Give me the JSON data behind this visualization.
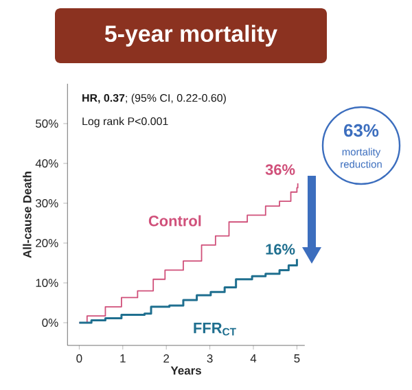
{
  "chart_data": {
    "type": "step",
    "title": "5-year mortality",
    "xlabel": "Years",
    "ylabel": "All-cause Death",
    "xlim": [
      -0.27,
      5.18
    ],
    "ylim": [
      -5.7,
      60
    ],
    "xticks": [
      0,
      1,
      2,
      3,
      4,
      5
    ],
    "yticks": [
      {
        "value": 0,
        "label": "0%"
      },
      {
        "value": 10,
        "label": "10%"
      },
      {
        "value": 20,
        "label": "20%"
      },
      {
        "value": 30,
        "label": "30%"
      },
      {
        "value": 40,
        "label": "40%"
      },
      {
        "value": 50,
        "label": "50%"
      }
    ],
    "series": [
      {
        "name": "Control",
        "color": "#d0507a",
        "x": [
          0,
          0.18,
          0.6,
          0.97,
          1.34,
          1.7,
          1.97,
          2.39,
          2.81,
          3.13,
          3.44,
          3.86,
          4.28,
          4.6,
          4.86,
          5,
          5.02
        ],
        "values": [
          0,
          1.7,
          4,
          6.3,
          8,
          10.9,
          13.2,
          15.5,
          19.5,
          21.8,
          25.3,
          27,
          29.3,
          30.5,
          32.8,
          33.9,
          35
        ]
      },
      {
        "name": "FFR$_{CT}$",
        "color": "#1f6f8f",
        "x": [
          0,
          0.28,
          0.6,
          0.97,
          1.5,
          1.65,
          2.07,
          2.39,
          2.7,
          3.02,
          3.34,
          3.6,
          3.97,
          4.28,
          4.6,
          4.81,
          5
        ],
        "values": [
          0,
          0.6,
          1.1,
          2,
          2.3,
          4,
          4.3,
          5.7,
          6.9,
          7.7,
          8.9,
          10.9,
          11.7,
          12.3,
          13.2,
          14.4,
          16
        ]
      }
    ],
    "annotations": [
      "**HR, 0.37**; (95% CI, 0.22-0.60)",
      "Log rank P<0.001",
      {
        "text": "36%",
        "x": 5,
        "y": 36
      },
      {
        "text": "16%",
        "x": 5,
        "y": 16
      },
      "63%",
      "mortality reduction"
    ]
  }
}
